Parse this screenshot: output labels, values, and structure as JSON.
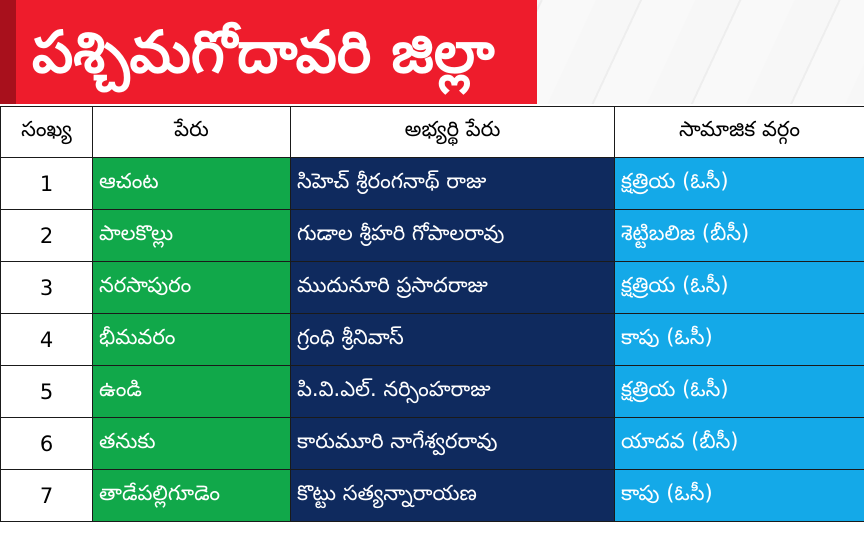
{
  "title": "పశ్చిమగోదావరి జిల్లా",
  "colors": {
    "title_bg": "#ee1c2c",
    "constituency_bg": "#11a84a",
    "candidate_bg": "#0f2a5e",
    "caste_bg": "#14a9e8"
  },
  "table": {
    "headers": {
      "serial": "సంఖ్య",
      "constituency": "పేరు",
      "candidate": "అభ్యర్థి పేరు",
      "caste": "సామాజిక వర్గం"
    },
    "rows": [
      {
        "serial": "1",
        "constituency": "ఆచంట",
        "candidate": "సిహెచ్ శ్రీరంగనాథ్ రాజు",
        "caste": "క్షత్రియ (ఓసీ)"
      },
      {
        "serial": "2",
        "constituency": "పాలకొల్లు",
        "candidate": "గుడాల శ్రీహరి గోపాలరావు",
        "caste": "శెట్టిబలిజ (బీసీ)"
      },
      {
        "serial": "3",
        "constituency": "నరసాపురం",
        "candidate": "ముదునూరి ప్రసాదరాజు",
        "caste": "క్షత్రియ (ఓసీ)"
      },
      {
        "serial": "4",
        "constituency": "భీమవరం",
        "candidate": "గ్రంధి శ్రీనివాస్",
        "caste": "కాపు (ఓసీ)"
      },
      {
        "serial": "5",
        "constituency": "ఉండి",
        "candidate": "పి.వి.ఎల్. నర్సింహరాజు",
        "caste": "క్షత్రియ (ఓసీ)"
      },
      {
        "serial": "6",
        "constituency": "తనుకు",
        "candidate": "కారుమూరి నాగేశ్వరరావు",
        "caste": "యాదవ (బీసీ)"
      },
      {
        "serial": "7",
        "constituency": "తాడేపల్లిగూడెం",
        "candidate": "కొట్టు సత్యన్నారాయణ",
        "caste": "కాపు (ఓసీ)"
      }
    ]
  }
}
